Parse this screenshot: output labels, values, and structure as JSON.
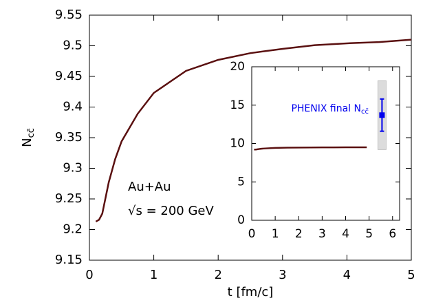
{
  "chart_data": [
    {
      "type": "line",
      "xlabel": "t [fm/c]",
      "ylabel": {
        "text": "N",
        "subscript": "cc̄"
      },
      "x": [
        0.1,
        0.15,
        0.2,
        0.3,
        0.4,
        0.5,
        0.75,
        1,
        1.5,
        2,
        2.5,
        3,
        3.5,
        4,
        4.5,
        5
      ],
      "series": [
        {
          "color": "#5a1010",
          "values": [
            9.213,
            9.216,
            9.226,
            9.277,
            9.315,
            9.344,
            9.389,
            9.423,
            9.459,
            9.477,
            9.488,
            9.495,
            9.501,
            9.504,
            9.506,
            9.51
          ]
        }
      ],
      "annotations": [
        "Au+Au",
        "√s = 200 GeV"
      ],
      "xlim": [
        0,
        5
      ],
      "xticks": [
        0,
        1,
        2,
        3,
        4,
        5
      ],
      "ylim": [
        9.15,
        9.55
      ],
      "yticks": [
        9.15,
        9.2,
        9.25,
        9.3,
        9.35,
        9.4,
        9.45,
        9.5,
        9.55
      ]
    },
    {
      "type": "line",
      "x": [
        0.1,
        0.15,
        0.2,
        0.3,
        0.4,
        0.5,
        0.75,
        1,
        1.5,
        2,
        2.5,
        3,
        3.5,
        4,
        4.5,
        4.9
      ],
      "series": [
        {
          "color": "#5a1010",
          "values": [
            9.213,
            9.216,
            9.226,
            9.277,
            9.315,
            9.344,
            9.389,
            9.423,
            9.459,
            9.477,
            9.488,
            9.495,
            9.501,
            9.504,
            9.506,
            9.51
          ]
        }
      ],
      "point": {
        "label": "PHENIX final N",
        "label_subscript": "cc̄",
        "x": 5.55,
        "y": 13.7,
        "error": 2.1,
        "sys_error": 4.5,
        "color": "#0000ee"
      },
      "xlim": [
        0,
        6.3
      ],
      "xticks": [
        0,
        1,
        2,
        3,
        4,
        5,
        6
      ],
      "ylim": [
        0,
        20
      ],
      "yticks": [
        0,
        5,
        10,
        15,
        20
      ]
    }
  ]
}
